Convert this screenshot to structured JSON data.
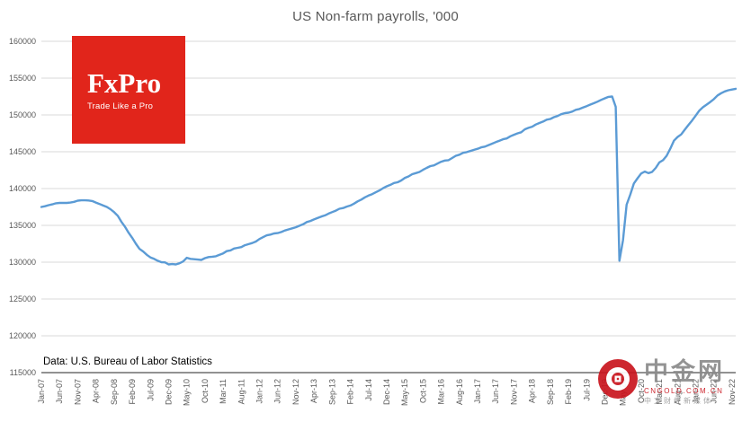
{
  "page": {
    "title": "US Non-farm payrolls, '000",
    "source_note": "Data: U.S. Bureau of Labor Statistics"
  },
  "logo": {
    "name": "FxPro",
    "tagline": "Trade Like a Pro",
    "background": "#e1251b"
  },
  "watermark": {
    "site_name": "中金网",
    "site_domain": "CNGOLD.COM.CN",
    "site_tagline": "中文财经新媒体",
    "accent_color": "#c9151e"
  },
  "chart_data": {
    "type": "line",
    "title": "US Non-farm payrolls, '000",
    "xlabel": "",
    "ylabel": "",
    "x_unit": "month",
    "x_tick_every": 5,
    "x_tick_labels": [
      "Jan-07",
      "Jun-07",
      "Nov-07",
      "Apr-08",
      "Sep-08",
      "Feb-09",
      "Jul-09",
      "Dec-09",
      "May-10",
      "Oct-10",
      "Mar-11",
      "Aug-11",
      "Jan-12",
      "Jun-12",
      "Nov-12",
      "Apr-13",
      "Sep-13",
      "Feb-14",
      "Jul-14",
      "Dec-14",
      "May-15",
      "Oct-15",
      "Mar-16",
      "Aug-16",
      "Jan-17",
      "Jun-17",
      "Nov-17",
      "Apr-18",
      "Sep-18",
      "Feb-19",
      "Jul-19",
      "Dec-19",
      "May-20",
      "Oct-20",
      "Mar-21",
      "Aug-21",
      "Jan-22",
      "Jun-22",
      "Nov-22"
    ],
    "x_start": "Jan-07",
    "x_end": "Dec-22",
    "values": [
      137500,
      137600,
      137750,
      137850,
      138000,
      138050,
      138060,
      138050,
      138100,
      138200,
      138350,
      138400,
      138400,
      138380,
      138300,
      138100,
      137900,
      137700,
      137500,
      137200,
      136800,
      136300,
      135500,
      134800,
      134000,
      133300,
      132500,
      131800,
      131450,
      131000,
      130650,
      130450,
      130200,
      130000,
      129980,
      129700,
      129750,
      129690,
      129850,
      130100,
      130600,
      130450,
      130400,
      130350,
      130300,
      130550,
      130700,
      130750,
      130800,
      131000,
      131200,
      131500,
      131600,
      131850,
      131950,
      132050,
      132300,
      132450,
      132600,
      132800,
      133150,
      133400,
      133650,
      133750,
      133900,
      133950,
      134100,
      134300,
      134450,
      134600,
      134750,
      134950,
      135150,
      135450,
      135600,
      135800,
      136000,
      136200,
      136350,
      136600,
      136800,
      137000,
      137250,
      137350,
      137550,
      137700,
      137950,
      138250,
      138500,
      138800,
      139050,
      139250,
      139500,
      139750,
      140050,
      140300,
      140500,
      140750,
      140850,
      141100,
      141450,
      141650,
      141950,
      142100,
      142250,
      142550,
      142800,
      143050,
      143150,
      143400,
      143650,
      143800,
      143850,
      144150,
      144450,
      144600,
      144850,
      144950,
      145100,
      145250,
      145400,
      145600,
      145700,
      145900,
      146100,
      146300,
      146500,
      146700,
      146800,
      147100,
      147300,
      147500,
      147650,
      148050,
      148250,
      148400,
      148700,
      148900,
      149100,
      149350,
      149450,
      149700,
      149850,
      150100,
      150250,
      150300,
      150450,
      150700,
      150800,
      151000,
      151200,
      151400,
      151600,
      151800,
      152050,
      152250,
      152450,
      152500,
      151100,
      130200,
      133000,
      137800,
      139200,
      140700,
      141400,
      142050,
      142300,
      142100,
      142250,
      142800,
      143550,
      143850,
      144450,
      145400,
      146500,
      147000,
      147350,
      148000,
      148650,
      149250,
      149900,
      150600,
      151050,
      151400,
      151750,
      152150,
      152650,
      152950,
      153200,
      153350,
      153450,
      153550
    ],
    "ylim": [
      115000,
      160000
    ],
    "y_ticks": [
      115000,
      120000,
      125000,
      130000,
      135000,
      140000,
      145000,
      150000,
      155000,
      160000
    ],
    "grid": true,
    "legend": false,
    "line_color": "#5b9bd5",
    "gridline_color": "#d9d9d9",
    "axis_color": "#262626",
    "source": "Data: U.S. Bureau of Labor Statistics"
  }
}
